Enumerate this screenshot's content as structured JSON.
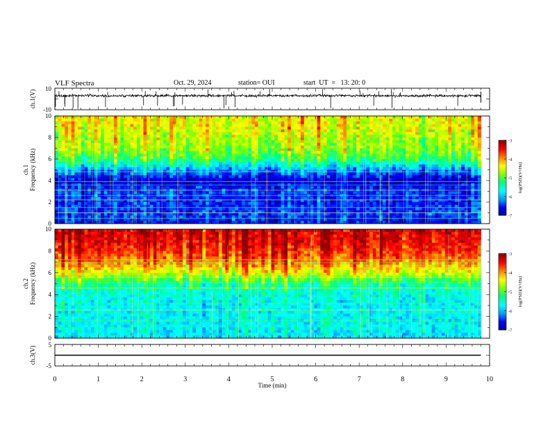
{
  "header": {
    "title": "VLF Spectra",
    "date": "Oct. 29, 2024",
    "station": "station= OUI",
    "start_ut": "start  UT  =   13: 20: 0"
  },
  "colors": {
    "background": "#ffffff",
    "trace": "#000000",
    "colormap": [
      "#00008f",
      "#0000ff",
      "#00a0ff",
      "#00ffff",
      "#00ff80",
      "#80ff00",
      "#ffff00",
      "#ff8000",
      "#ff0000",
      "#8f0000"
    ]
  },
  "chart_data": [
    {
      "type": "line",
      "panel": "ch1-waveform",
      "ylabel": "ch.1(V)",
      "ytick_labels": [
        "10",
        "-10"
      ],
      "ylim": [
        -10,
        10
      ],
      "xlim": [
        0,
        10
      ],
      "series": [
        {
          "baseline": 3,
          "x_end": 9.8
        }
      ]
    },
    {
      "type": "heatmap",
      "panel": "ch1-spectrogram",
      "ylabel": "ch.1\nFrequency (kHz)",
      "ytick_labels": [
        "10",
        "8",
        "6",
        "4",
        "2",
        "0"
      ],
      "ylim": [
        0,
        10
      ],
      "xlim": [
        0,
        10
      ],
      "data_extent_min": 9.8,
      "colorbar": {
        "label": "log(PSD)(V²/Hz)",
        "tick_labels": [
          "-3",
          "-4",
          "-5",
          "-6",
          "-7"
        ],
        "range": [
          -7,
          -3
        ]
      },
      "intensity_profile": [
        {
          "khz": 0,
          "log_psd": -6.6
        },
        {
          "khz": 1,
          "log_psd": -6.4
        },
        {
          "khz": 2,
          "log_psd": -6.5
        },
        {
          "khz": 3,
          "log_psd": -6.4
        },
        {
          "khz": 4,
          "log_psd": -6.8
        },
        {
          "khz": 5,
          "log_psd": -6.1
        },
        {
          "khz": 6,
          "log_psd": -5.1
        },
        {
          "khz": 7,
          "log_psd": -4.7
        },
        {
          "khz": 8,
          "log_psd": -4.6
        },
        {
          "khz": 9,
          "log_psd": -4.4
        },
        {
          "khz": 10,
          "log_psd": -4.4
        }
      ],
      "lines_khz": [
        0.5,
        1.0,
        1.5,
        2.2,
        2.6,
        3.1,
        3.6,
        3.9,
        4.8
      ]
    },
    {
      "type": "heatmap",
      "panel": "ch2-spectrogram",
      "ylabel": "ch.2\nFrequency (kHz)",
      "ytick_labels": [
        "10",
        "8",
        "6",
        "4",
        "2",
        "0"
      ],
      "ylim": [
        0,
        10
      ],
      "xlim": [
        0,
        10
      ],
      "data_extent_min": 9.8,
      "colorbar": {
        "label": "log(PSD)(V²/Hz)",
        "tick_labels": [
          "-3",
          "-4",
          "-5",
          "-6",
          "-7"
        ],
        "range": [
          -7,
          -3
        ]
      },
      "intensity_profile": [
        {
          "khz": 0,
          "log_psd": -5.8
        },
        {
          "khz": 1,
          "log_psd": -5.7
        },
        {
          "khz": 2,
          "log_psd": -5.7
        },
        {
          "khz": 3,
          "log_psd": -5.7
        },
        {
          "khz": 4,
          "log_psd": -5.6
        },
        {
          "khz": 5,
          "log_psd": -5.3
        },
        {
          "khz": 6,
          "log_psd": -4.5
        },
        {
          "khz": 7,
          "log_psd": -3.9
        },
        {
          "khz": 8,
          "log_psd": -3.6
        },
        {
          "khz": 9,
          "log_psd": -3.4
        },
        {
          "khz": 10,
          "log_psd": -3.3
        }
      ],
      "lines_khz": [
        1.6,
        2.6,
        3.2,
        4.6,
        5.1,
        5.6,
        6.9,
        7.2
      ]
    },
    {
      "type": "line",
      "panel": "ch3-waveform",
      "ylabel": "ch.3(V)",
      "ytick_labels": [
        "5",
        "-5"
      ],
      "ylim": [
        -5,
        5
      ],
      "xlim": [
        0,
        10
      ],
      "series": [
        {
          "baseline": 0,
          "x_end": 9.8
        }
      ]
    }
  ],
  "xaxis": {
    "label": "Time (min)",
    "tick_labels": [
      "0",
      "1",
      "2",
      "3",
      "4",
      "5",
      "6",
      "7",
      "8",
      "9",
      "10"
    ],
    "range": [
      0,
      10
    ]
  }
}
